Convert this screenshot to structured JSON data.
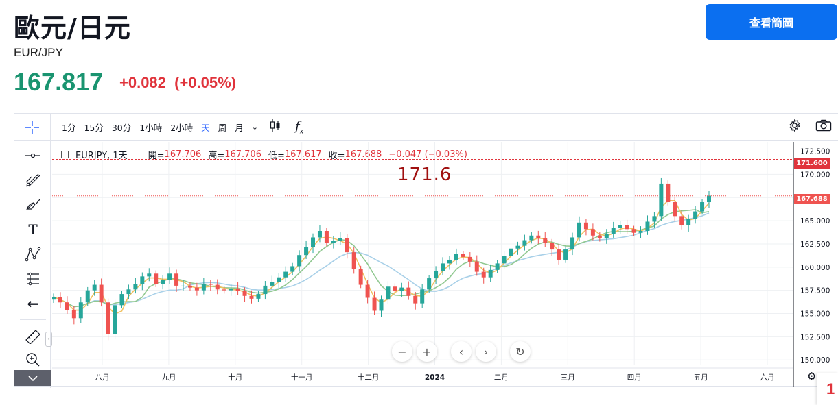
{
  "header": {
    "title": "歐元/日元",
    "symbol": "EUR/JPY",
    "price": "167.817",
    "change": "+0.082  (+0.05%)",
    "view_chart_button": "查看簡圖"
  },
  "toolbar": {
    "intervals": [
      "1分",
      "15分",
      "30分",
      "1小時",
      "2小時",
      "天",
      "周",
      "月"
    ],
    "active_interval": "天",
    "dropdown_icon": "chevron-down-icon",
    "chart_type_icon": "candlestick-icon",
    "indicators_icon": "fx-icon",
    "settings_icon": "gear-icon",
    "snapshot_icon": "camera-icon"
  },
  "legend": {
    "symbol": "EURJPY, 1天",
    "open_label": "開=",
    "open": "167.706",
    "high_label": "高=",
    "high": "167.706",
    "low_label": "低=",
    "low": "167.617",
    "close_label": "收=",
    "close": "167.688",
    "change": "−0.047 (−0.03%)"
  },
  "annotation": "171.6",
  "price_tags": {
    "horizontal_line": "171.600",
    "last_price": "167.688"
  },
  "colors": {
    "up": "#26a69a",
    "down": "#ef5350",
    "ma_fast": "#f0c060",
    "ma_mid": "#90c890",
    "ma_slow": "#a8d0e8",
    "accent": "#0b6ff0"
  },
  "chart_data": {
    "type": "line",
    "title": "",
    "ylim": [
      149.5,
      173.5
    ],
    "y_ticks": [
      "172.500",
      "170.000",
      "167.500",
      "165.000",
      "162.500",
      "160.000",
      "157.500",
      "155.000",
      "152.500",
      "150.000"
    ],
    "x_ticks": [
      "八月",
      "九月",
      "十月",
      "十一月",
      "十二月",
      "2024",
      "二月",
      "三月",
      "四月",
      "五月",
      "六月"
    ],
    "horizontal_line": 171.6,
    "last_price": 167.688,
    "series": [
      {
        "name": "",
        "values": [
          156.8,
          156.2,
          155.4,
          154.5,
          156.2,
          157.5,
          158.1,
          156.2,
          152.8,
          155.9,
          157.1,
          157.6,
          158.2,
          159.0,
          159.3,
          158.2,
          158.6,
          159.3,
          158.0,
          158.0,
          157.8,
          157.5,
          158.2,
          158.1,
          157.6,
          157.5,
          157.7,
          157.4,
          156.9,
          156.6,
          157.1,
          158.0,
          158.4,
          158.9,
          159.5,
          160.1,
          161.3,
          162.2,
          163.2,
          163.9,
          162.6,
          162.8,
          163.1,
          161.6,
          159.8,
          158.1,
          156.7,
          155.3,
          156.5,
          157.9,
          157.4,
          157.8,
          156.9,
          156.1,
          157.6,
          158.8,
          159.6,
          160.4,
          160.8,
          161.4,
          161.1,
          160.6,
          159.5,
          158.9,
          159.7,
          160.4,
          161.2,
          162.0,
          162.3,
          162.9,
          163.4,
          163.1,
          162.6,
          161.9,
          160.8,
          161.9,
          163.2,
          164.8,
          164.1,
          163.4,
          163.1,
          163.6,
          164.2,
          164.5,
          164.1,
          163.7,
          163.9,
          164.9,
          165.5,
          169.0,
          167.0,
          165.5,
          164.5,
          165.2,
          166.0,
          167.0,
          167.7
        ]
      }
    ]
  },
  "nav": {
    "zoom_out": "−",
    "zoom_in": "+",
    "scroll_left": "‹",
    "scroll_right": "›",
    "reset": "↻"
  },
  "corner_badge": "1"
}
